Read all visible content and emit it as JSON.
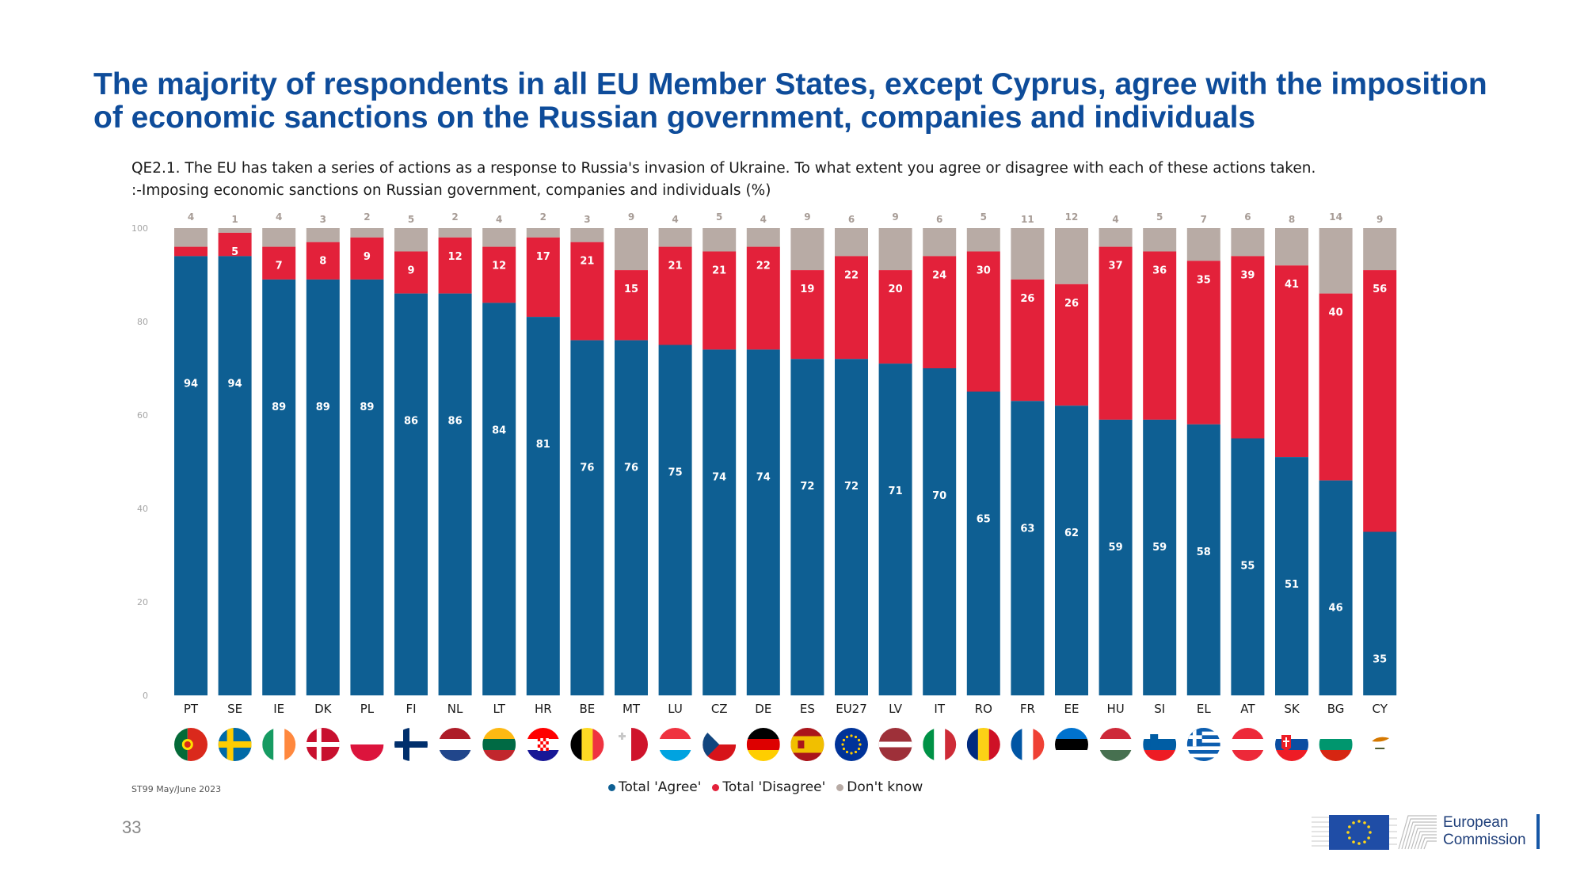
{
  "title": {
    "line1": "The majority of respondents in all EU Member States, except Cyprus, agree with the imposition",
    "line2": "of economic sanctions on the Russian government, companies and individuals"
  },
  "question": {
    "line1": "QE2.1. The EU has taken a series of actions as a response to Russia's invasion of Ukraine. To what extent you agree or disagree with each of these actions taken.",
    "line2": ":-Imposing economic sanctions on Russian government, companies and individuals (%)"
  },
  "chart_data": {
    "type": "bar",
    "stacked": true,
    "categories": [
      "PT",
      "SE",
      "IE",
      "DK",
      "PL",
      "FI",
      "NL",
      "LT",
      "HR",
      "BE",
      "MT",
      "LU",
      "CZ",
      "DE",
      "ES",
      "EU27",
      "LV",
      "IT",
      "RO",
      "FR",
      "EE",
      "HU",
      "SI",
      "EL",
      "AT",
      "SK",
      "BG",
      "CY"
    ],
    "series": [
      {
        "name": "Total 'Agree'",
        "color": "#0E5F93",
        "values": [
          94,
          94,
          89,
          89,
          89,
          86,
          86,
          84,
          81,
          76,
          76,
          75,
          74,
          74,
          72,
          72,
          71,
          70,
          65,
          63,
          62,
          59,
          59,
          58,
          55,
          51,
          46,
          35
        ]
      },
      {
        "name": "Total 'Disagree'",
        "color": "#E3213A",
        "values": [
          2,
          5,
          7,
          8,
          9,
          9,
          12,
          12,
          17,
          21,
          15,
          21,
          21,
          22,
          19,
          22,
          20,
          24,
          30,
          26,
          26,
          37,
          36,
          35,
          39,
          41,
          40,
          56
        ]
      },
      {
        "name": "Don't know",
        "color": "#B8ABA5",
        "values": [
          4,
          1,
          4,
          3,
          2,
          5,
          2,
          4,
          2,
          3,
          9,
          4,
          5,
          4,
          9,
          6,
          9,
          6,
          5,
          11,
          12,
          4,
          5,
          7,
          6,
          8,
          14,
          9
        ]
      }
    ],
    "shown_labels": {
      "agree": [
        "94",
        "94",
        "89",
        "89",
        "89",
        "86",
        "86",
        "84",
        "81",
        "76",
        "76",
        "75",
        "74",
        "74",
        "72",
        "72",
        "71",
        "70",
        "65",
        "63",
        "62",
        "59",
        "59",
        "58",
        "55",
        "51",
        "46",
        "35"
      ],
      "disagree": [
        "",
        "5",
        "7",
        "8",
        "9",
        "9",
        "12",
        "12",
        "17",
        "21",
        "15",
        "21",
        "21",
        "22",
        "19",
        "22",
        "20",
        "24",
        "30",
        "26",
        "26",
        "37",
        "36",
        "35",
        "39",
        "41",
        "40",
        "56"
      ],
      "dont_know": [
        "4",
        "1",
        "4",
        "3",
        "2",
        "5",
        "2",
        "4",
        "2",
        "3",
        "9",
        "4",
        "5",
        "4",
        "9",
        "6",
        "9",
        "6",
        "5",
        "11",
        "12",
        "4",
        "5",
        "7",
        "6",
        "8",
        "14",
        "9"
      ]
    },
    "yticks": [
      0,
      20,
      40,
      60,
      80,
      100
    ],
    "ylim": [
      0,
      100
    ],
    "grid": false,
    "legend_position": "bottom-center",
    "xlabel": "",
    "ylabel": ""
  },
  "flags": [
    {
      "code": "PT",
      "icon": "portugal-flag-icon"
    },
    {
      "code": "SE",
      "icon": "sweden-flag-icon"
    },
    {
      "code": "IE",
      "icon": "ireland-flag-icon"
    },
    {
      "code": "DK",
      "icon": "denmark-flag-icon"
    },
    {
      "code": "PL",
      "icon": "poland-flag-icon"
    },
    {
      "code": "FI",
      "icon": "finland-flag-icon"
    },
    {
      "code": "NL",
      "icon": "netherlands-flag-icon"
    },
    {
      "code": "LT",
      "icon": "lithuania-flag-icon"
    },
    {
      "code": "HR",
      "icon": "croatia-flag-icon"
    },
    {
      "code": "BE",
      "icon": "belgium-flag-icon"
    },
    {
      "code": "MT",
      "icon": "malta-flag-icon"
    },
    {
      "code": "LU",
      "icon": "luxembourg-flag-icon"
    },
    {
      "code": "CZ",
      "icon": "czechia-flag-icon"
    },
    {
      "code": "DE",
      "icon": "germany-flag-icon"
    },
    {
      "code": "ES",
      "icon": "spain-flag-icon"
    },
    {
      "code": "EU27",
      "icon": "eu-flag-icon"
    },
    {
      "code": "LV",
      "icon": "latvia-flag-icon"
    },
    {
      "code": "IT",
      "icon": "italy-flag-icon"
    },
    {
      "code": "RO",
      "icon": "romania-flag-icon"
    },
    {
      "code": "FR",
      "icon": "france-flag-icon"
    },
    {
      "code": "EE",
      "icon": "estonia-flag-icon"
    },
    {
      "code": "HU",
      "icon": "hungary-flag-icon"
    },
    {
      "code": "SI",
      "icon": "slovenia-flag-icon"
    },
    {
      "code": "EL",
      "icon": "greece-flag-icon"
    },
    {
      "code": "AT",
      "icon": "austria-flag-icon"
    },
    {
      "code": "SK",
      "icon": "slovakia-flag-icon"
    },
    {
      "code": "BG",
      "icon": "bulgaria-flag-icon"
    },
    {
      "code": "CY",
      "icon": "cyprus-flag-icon"
    }
  ],
  "legend": [
    {
      "label": "Total 'Agree'",
      "color": "#0E5F93"
    },
    {
      "label": "Total 'Disagree'",
      "color": "#E3213A"
    },
    {
      "label": "Don't know",
      "color": "#B8ABA5"
    }
  ],
  "source": "ST99 May/June 2023",
  "page_number": "33",
  "logo": {
    "line1": "European",
    "line2": "Commission",
    "icon": "european-commission-logo-icon"
  },
  "colors": {
    "title": "#0E4C9A",
    "agree": "#0E5F93",
    "disagree": "#E3213A",
    "dont_know": "#B8ABA5",
    "tick_text": "#A5A5A5"
  }
}
